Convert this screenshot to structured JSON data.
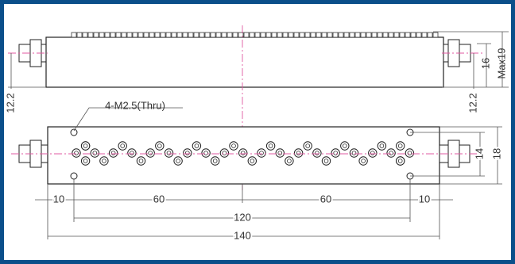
{
  "top_view": {
    "left_height": "12.2",
    "right_height": "12.2",
    "height": "16",
    "max_height": "Max19"
  },
  "bottom_view": {
    "holes_note": "4-M2.5(Thru)",
    "hole_spacing_vertical": "14",
    "body_height": "18",
    "left_offset": "10",
    "left_span": "60",
    "right_span": "60",
    "right_offset": "10",
    "hole_spacing": "120",
    "length": "140"
  }
}
